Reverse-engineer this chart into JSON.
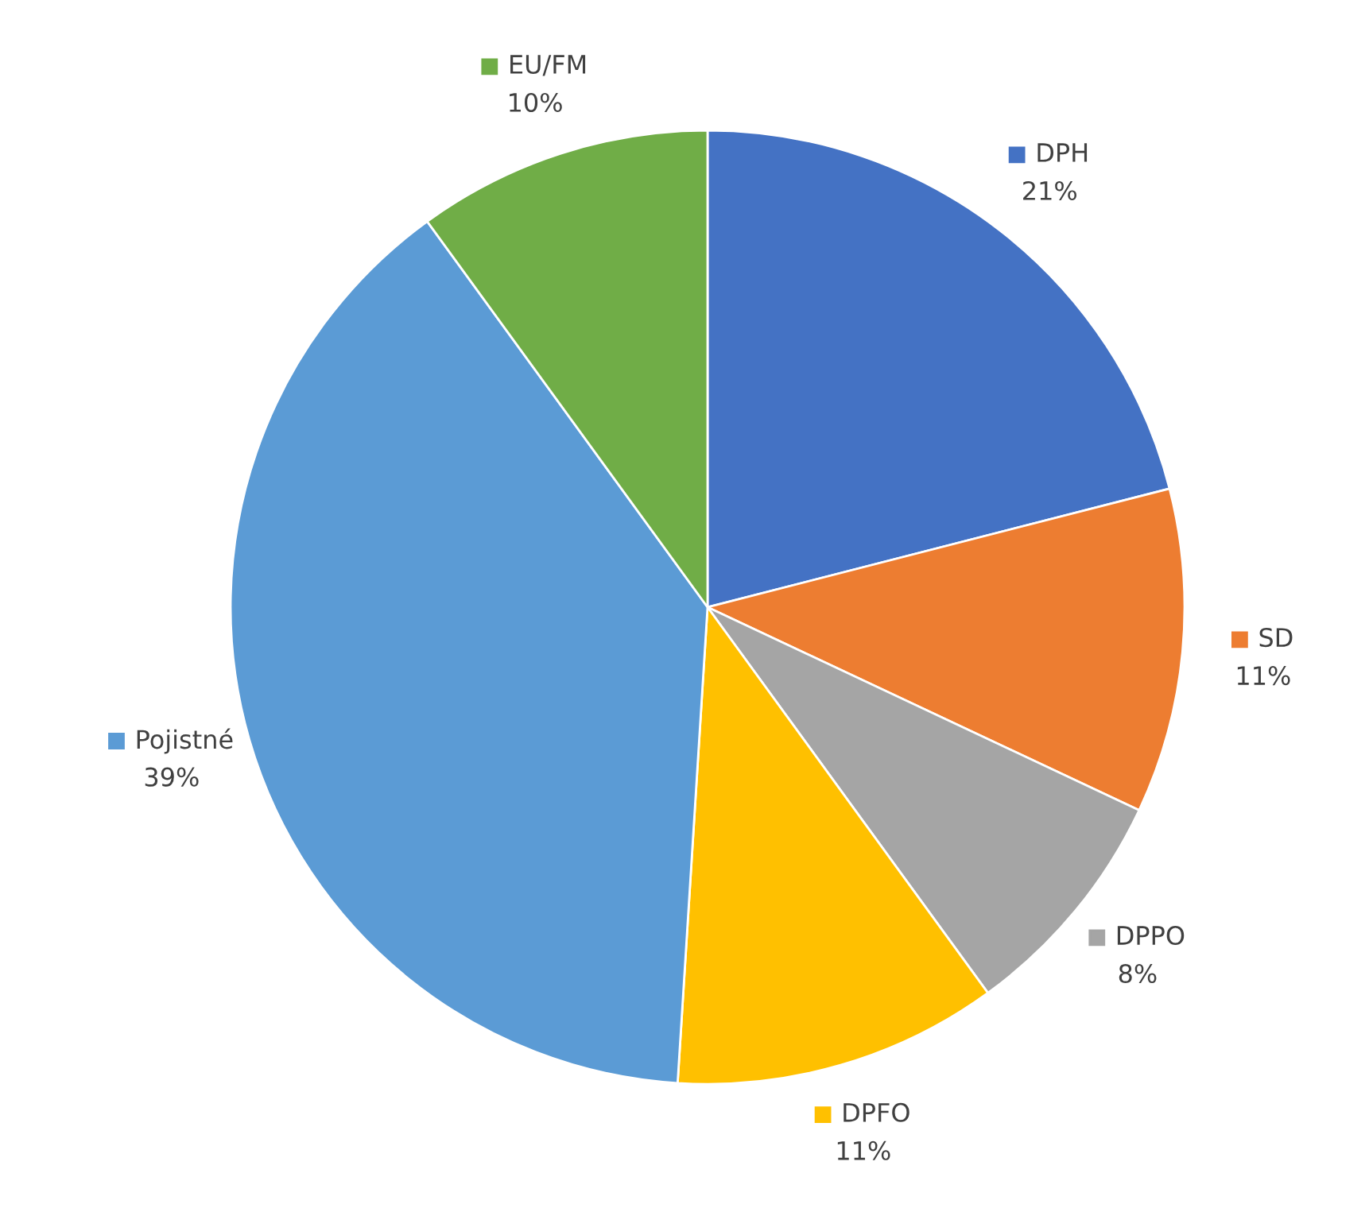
{
  "chart_data": {
    "type": "pie",
    "categories": [
      "DPH",
      "SD",
      "DPPO",
      "DPFO",
      "Pojistné",
      "EU/FM"
    ],
    "values": [
      21,
      11,
      8,
      11,
      39,
      10
    ],
    "value_labels": [
      "21%",
      "11%",
      "8%",
      "11%",
      "39%",
      "10%"
    ],
    "colors": [
      "#4472c4",
      "#ed7d31",
      "#a5a5a5",
      "#ffc000",
      "#5b9bd5",
      "#70ad47"
    ],
    "legend": "top left"
  }
}
